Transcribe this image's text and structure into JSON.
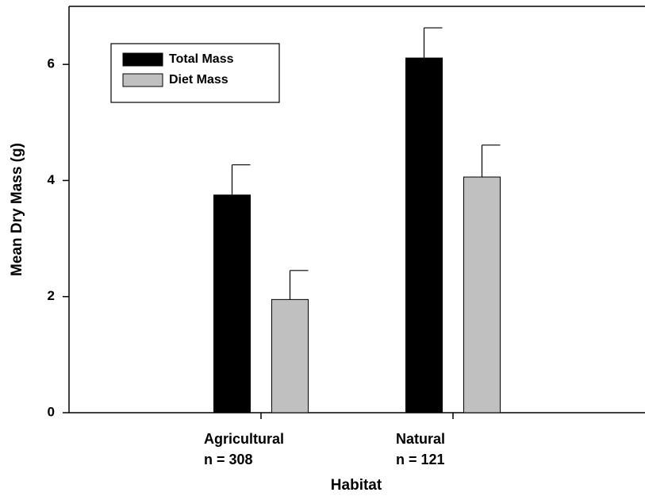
{
  "chart_data": {
    "type": "bar",
    "ylabel": "Mean Dry Mass (g)",
    "xlabel": "Habitat",
    "categories": [
      "Agricultural",
      "Natural"
    ],
    "category_notes": [
      "n = 308",
      "n = 121"
    ],
    "series": [
      {
        "name": "Total Mass",
        "color": "#000000",
        "values": [
          3.75,
          6.11
        ],
        "errors": [
          0.52,
          0.52
        ]
      },
      {
        "name": "Diet Mass",
        "color": "#c0c0c0",
        "values": [
          1.95,
          4.06
        ],
        "errors": [
          0.5,
          0.55
        ]
      }
    ],
    "ylim": [
      0,
      7
    ],
    "yticks": [
      0,
      2,
      4,
      6
    ],
    "legend": "upper left"
  }
}
